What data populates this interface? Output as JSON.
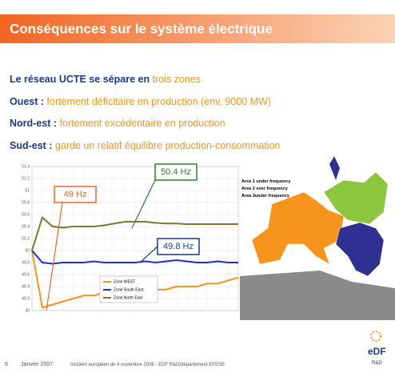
{
  "header": {
    "title": "Conséquences sur le système électrique"
  },
  "bullets": [
    {
      "label": "Le réseau UCTE se sépare en",
      "text": "trois zones"
    },
    {
      "label": "Ouest :",
      "text": "fortement déficitaire en production (env. 9000 MW)"
    },
    {
      "label": "Nord-est :",
      "text": "fortement excédentaire en production"
    },
    {
      "label": "Sud-est :",
      "text": "garde un relatif équilibre production-consommation"
    }
  ],
  "chart": {
    "type": "line",
    "categories": [
      null,
      null,
      null,
      null,
      null,
      null,
      null,
      null,
      null,
      null,
      null,
      null,
      null,
      null,
      null,
      null,
      null,
      null,
      null,
      null,
      null
    ],
    "series": [
      {
        "name": "Zone WEST",
        "color": "#f7941d",
        "values": [
          50,
          49.05,
          49.1,
          49.15,
          49.2,
          49.25,
          49.25,
          49.3,
          49.3,
          49.3,
          49.3,
          49.3,
          49.35,
          49.35,
          49.4,
          49.4,
          49.4,
          49.45,
          49.45,
          49.5,
          49.55
        ]
      },
      {
        "name": "Zone South East",
        "color": "#1f2fd0",
        "values": [
          50,
          49.8,
          49.78,
          49.8,
          49.8,
          49.8,
          49.82,
          49.8,
          49.8,
          49.8,
          49.8,
          49.82,
          49.8,
          49.82,
          49.84,
          49.82,
          49.8,
          49.8,
          49.82,
          49.8,
          49.8
        ]
      },
      {
        "name": "Zone North East",
        "color": "#7a7a2a",
        "values": [
          50,
          50.55,
          50.4,
          50.38,
          50.4,
          50.4,
          50.4,
          50.42,
          50.45,
          50.48,
          50.48,
          50.48,
          50.46,
          50.45,
          50.45,
          50.44,
          50.44,
          50.44,
          50.44,
          50.44,
          50.44
        ]
      }
    ],
    "ylim": [
      49,
      51.4
    ],
    "yticks": [
      49,
      49.2,
      49.4,
      49.6,
      49.8,
      50,
      50.2,
      50.4,
      50.6,
      50.8,
      51,
      51.2,
      51.4
    ],
    "grid": true,
    "annotations": [
      "49 Hz",
      "50.4 Hz",
      "49.8 Hz"
    ]
  },
  "map": {
    "legend": [
      "Area 1 under frequency",
      "Area 2 over frequency",
      "Area 3under frequency"
    ]
  },
  "footer": {
    "page": "6",
    "date": "Janvier 2007",
    "caption": "Incident européen du 4 novembre 2006 - EDF R&D/département EFESE",
    "logo": "eDF",
    "logo_sub": "R&D"
  }
}
